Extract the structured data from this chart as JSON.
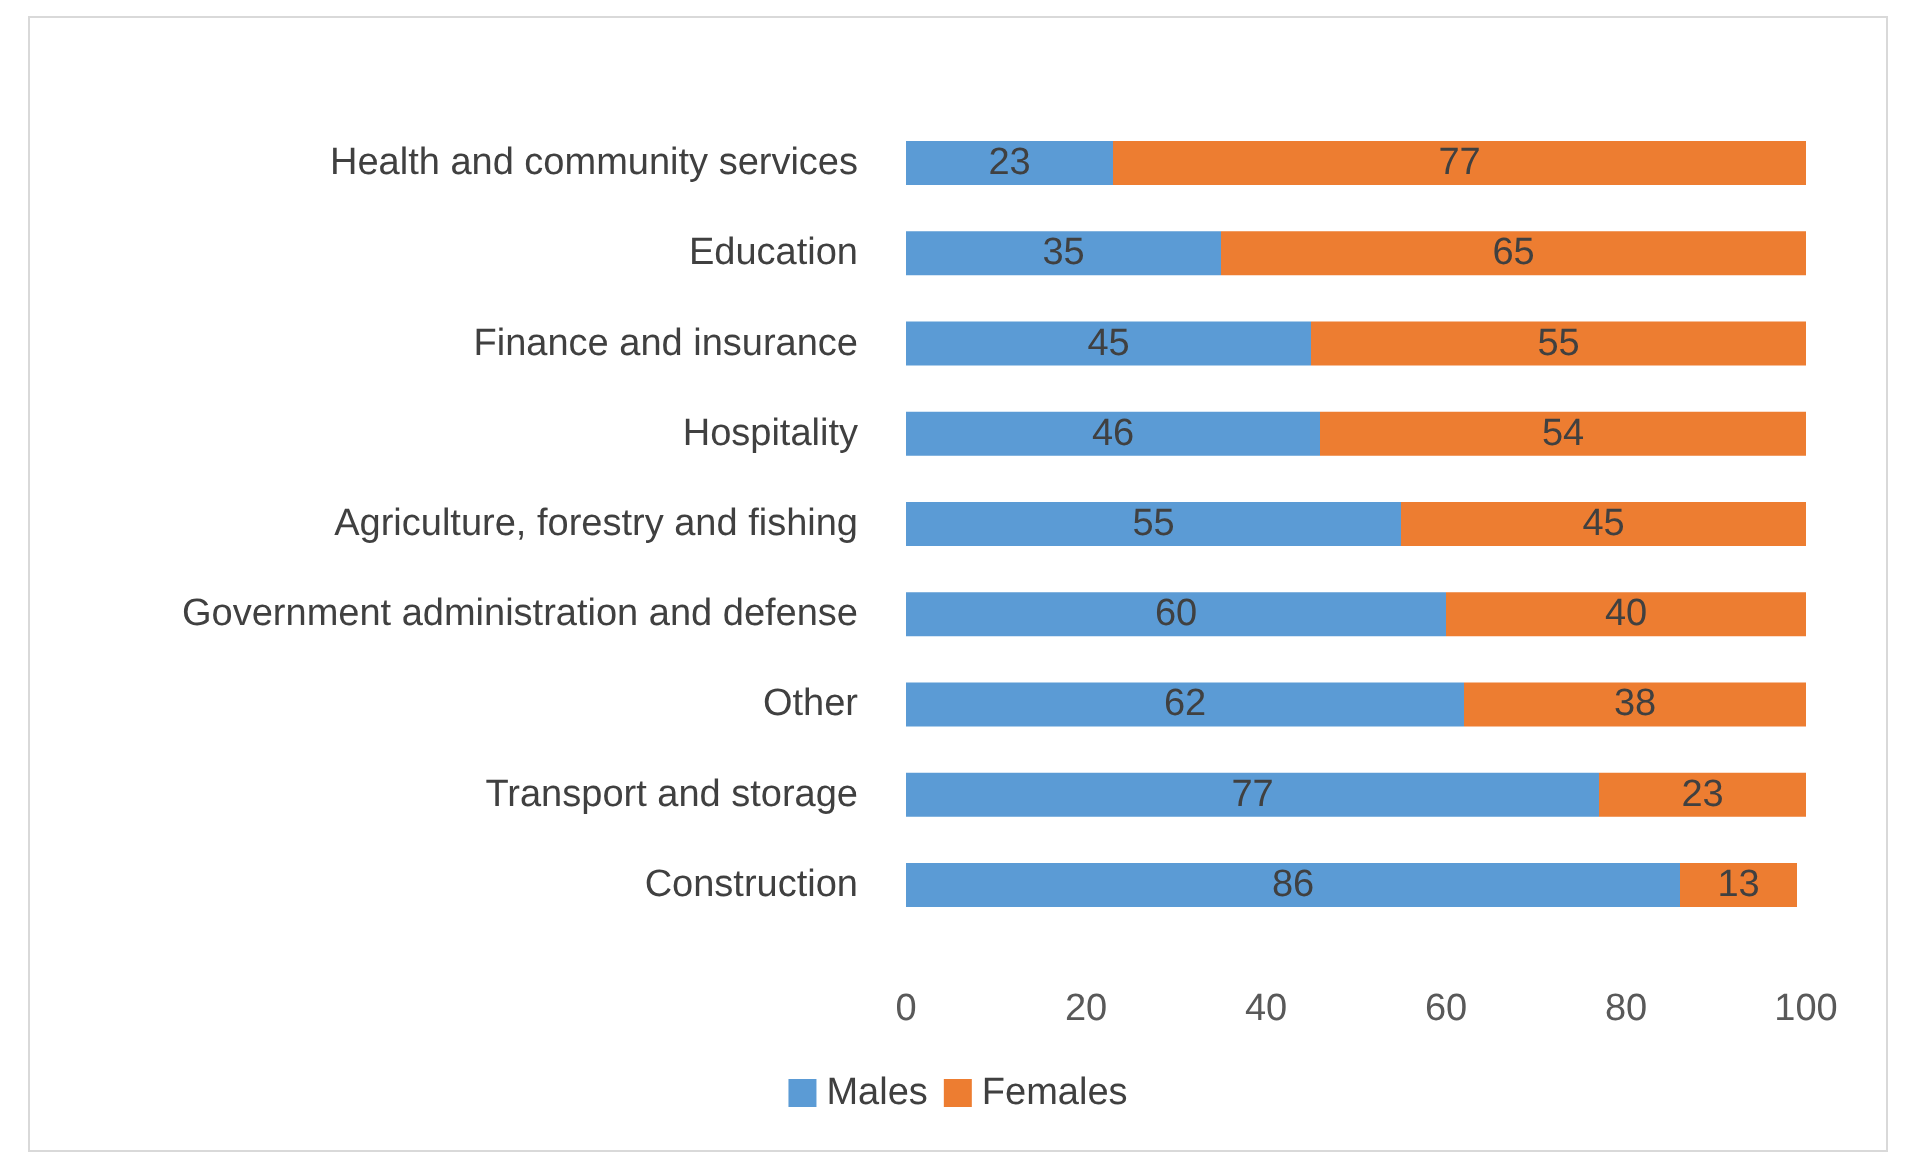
{
  "chart_data": {
    "type": "bar",
    "orientation": "horizontal",
    "stacked": true,
    "categories": [
      "Health and community services",
      "Education",
      "Finance and insurance",
      "Hospitality",
      "Agriculture, forestry and fishing",
      "Government administration and defense",
      "Other",
      "Transport and storage",
      "Construction"
    ],
    "series": [
      {
        "name": "Males",
        "color": "#5b9bd5",
        "values": [
          23,
          35,
          45,
          46,
          55,
          60,
          62,
          77,
          86
        ]
      },
      {
        "name": "Females",
        "color": "#ed7d31",
        "values": [
          77,
          65,
          55,
          54,
          45,
          40,
          38,
          23,
          13
        ]
      }
    ],
    "xlim": [
      0,
      100
    ],
    "xticks": [
      0,
      20,
      40,
      60,
      80,
      100
    ],
    "grid": false,
    "legend": "bottom",
    "data_labels": true
  }
}
